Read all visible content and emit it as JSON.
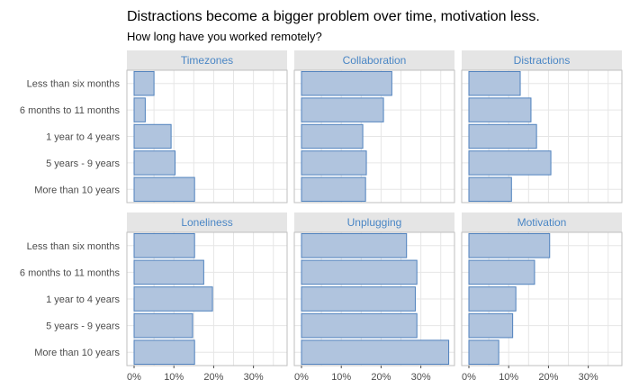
{
  "title": "Distractions become a bigger problem over time, motivation less.",
  "subtitle": "How long have you worked remotely?",
  "colors": {
    "bar_fill": "#b0c4de",
    "bar_stroke": "#4f81bd",
    "strip_bg": "#e5e5e5",
    "strip_text": "#4a86c5",
    "grid": "#e6e6e6",
    "panel_border": "#bfbfbf"
  },
  "chart_data": {
    "type": "bar",
    "orientation": "horizontal",
    "categories": [
      "Less than six months",
      "6 months to 11 months",
      "1 year to 4 years",
      "5 years - 9 years",
      "More than 10 years"
    ],
    "xlim": [
      0,
      0.38
    ],
    "x_ticks": [
      0,
      0.1,
      0.2,
      0.3
    ],
    "x_tick_labels": [
      "0%",
      "10%",
      "20%",
      "30%"
    ],
    "grid": true,
    "facets": [
      {
        "name": "Timezones",
        "values": [
          0.05,
          0.028,
          0.093,
          0.103,
          0.152
        ]
      },
      {
        "name": "Collaboration",
        "values": [
          0.227,
          0.206,
          0.154,
          0.163,
          0.161
        ]
      },
      {
        "name": "Distractions",
        "values": [
          0.129,
          0.156,
          0.17,
          0.206,
          0.107
        ]
      },
      {
        "name": "Loneliness",
        "values": [
          0.152,
          0.175,
          0.197,
          0.147,
          0.152
        ]
      },
      {
        "name": "Unplugging",
        "values": [
          0.264,
          0.29,
          0.286,
          0.29,
          0.37
        ]
      },
      {
        "name": "Motivation",
        "values": [
          0.203,
          0.165,
          0.118,
          0.11,
          0.075
        ]
      }
    ]
  }
}
